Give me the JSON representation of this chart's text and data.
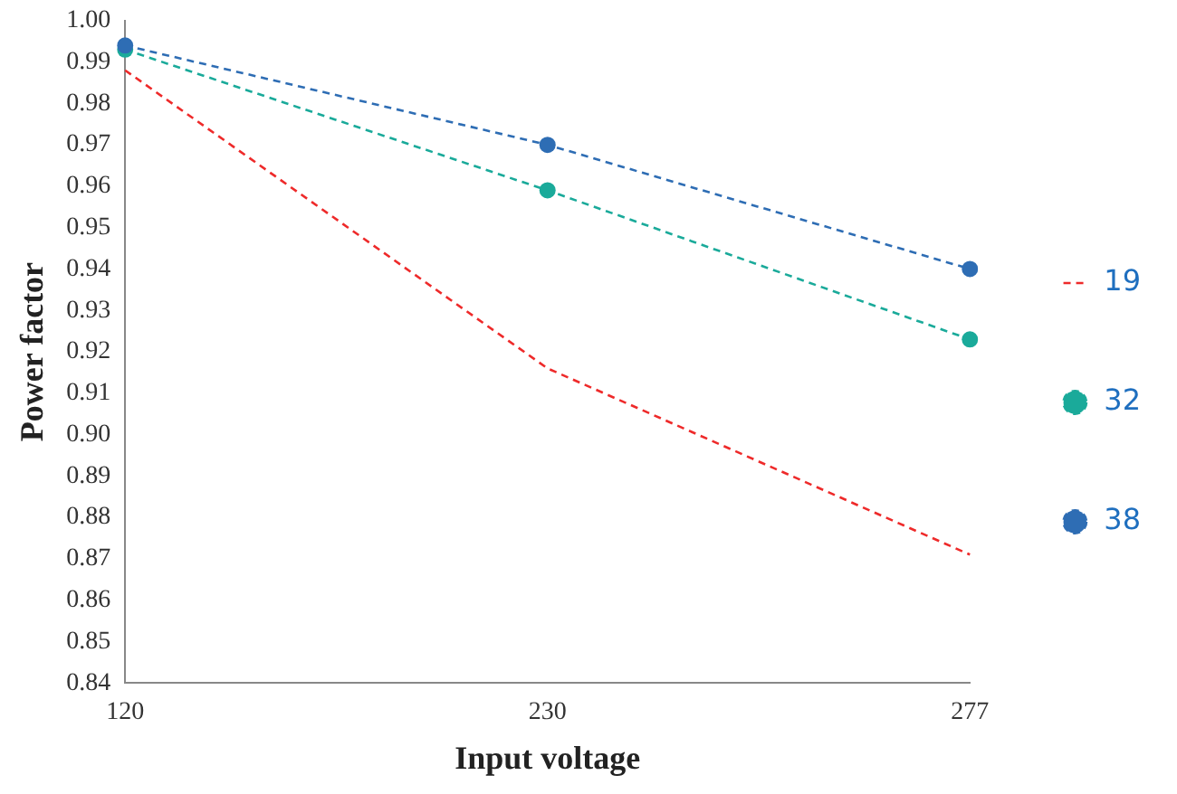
{
  "chart_data": {
    "type": "line",
    "xlabel": "Input voltage",
    "ylabel": "Power factor",
    "categories": [
      "120",
      "230",
      "277"
    ],
    "series": [
      {
        "name": "19",
        "color": "#ee2a2a",
        "values": [
          0.988,
          0.916,
          0.871
        ],
        "marker": "none"
      },
      {
        "name": "32",
        "color": "#1aaa9a",
        "values": [
          0.993,
          0.959,
          0.923
        ],
        "marker": "circle"
      },
      {
        "name": "38",
        "color": "#2e6db4",
        "values": [
          0.994,
          0.97,
          0.94
        ],
        "marker": "circle"
      }
    ],
    "ylim": [
      0.84,
      1.0
    ],
    "yticks": [
      0.84,
      0.85,
      0.86,
      0.87,
      0.88,
      0.89,
      {
        "value": 0.9,
        "label": "0.90"
      },
      0.91,
      0.92,
      0.93,
      0.94,
      0.95,
      0.96,
      0.97,
      0.98,
      0.99,
      {
        "value": 1.0,
        "label": "1.00"
      }
    ],
    "line_style": "dashed",
    "grid": false,
    "legend": "right"
  }
}
